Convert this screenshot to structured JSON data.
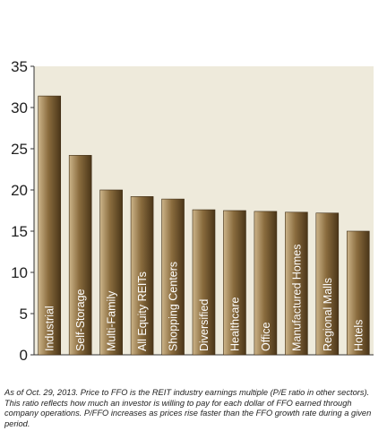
{
  "chart_data": {
    "type": "bar",
    "title": "",
    "xlabel": "",
    "ylabel": "",
    "ylim": [
      0,
      35
    ],
    "yticks": [
      0,
      5,
      10,
      15,
      20,
      25,
      30,
      35
    ],
    "grid": false,
    "categories": [
      "Industrial",
      "Self-Storage",
      "Multi-Family",
      "All Equity REITs",
      "Shopping Centers",
      "Diversified",
      "Healthcare",
      "Office",
      "Manufactured Homes",
      "Regional Malls",
      "Hotels"
    ],
    "values": [
      31.4,
      24.2,
      20.0,
      19.2,
      18.9,
      17.6,
      17.5,
      17.4,
      17.3,
      17.2,
      15.0
    ],
    "colors": {
      "background": "#eeeadb",
      "bar_light": "#cdb58a",
      "bar_mid": "#8a6c3e",
      "bar_dark": "#4a3518",
      "label": "#ffffff"
    }
  },
  "caption": "As of Oct. 29, 2013. Price to FFO is the REIT industry earnings multiple (P/E ratio in other sectors). This ratio reflects how much an investor is willing to pay for each dollar of FFO earned through company operations. P/FFO increases as prices rise faster than the FFO growth rate during a given period."
}
